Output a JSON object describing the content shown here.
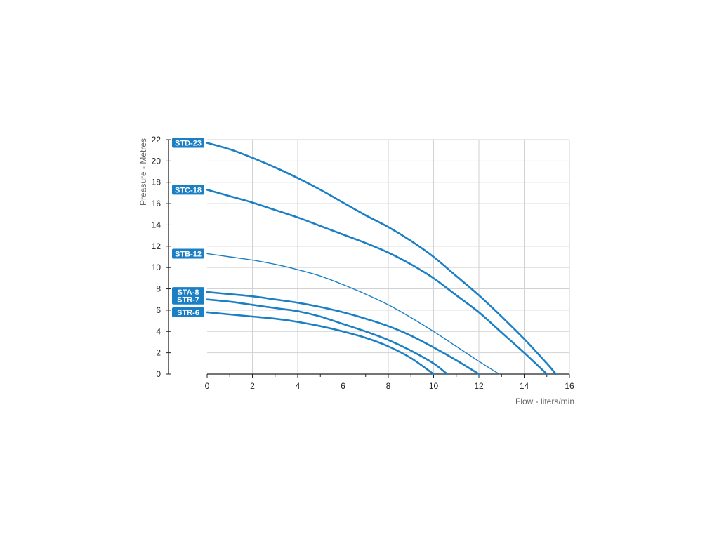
{
  "chart_data": {
    "type": "line",
    "title": "",
    "xlabel": "Flow - liters/min",
    "ylabel": "Preasure - Metres",
    "xlim": [
      0,
      16
    ],
    "ylim": [
      0,
      22
    ],
    "x_ticks": [
      0,
      2,
      4,
      6,
      8,
      10,
      12,
      14,
      16
    ],
    "y_ticks": [
      0,
      2,
      4,
      6,
      8,
      10,
      12,
      14,
      16,
      18,
      20,
      22
    ],
    "grid": true,
    "series_color": "#1a7fc4",
    "series": [
      {
        "name": "STD-23",
        "line": "thick",
        "x": [
          0,
          1,
          2,
          3,
          4,
          5,
          6,
          7,
          8,
          9,
          10,
          11,
          12,
          13,
          14,
          15,
          15.4
        ],
        "y": [
          21.7,
          21.1,
          20.3,
          19.4,
          18.4,
          17.3,
          16.1,
          14.9,
          13.8,
          12.5,
          11.0,
          9.2,
          7.4,
          5.4,
          3.3,
          1.0,
          0
        ]
      },
      {
        "name": "STC-18",
        "line": "thick",
        "x": [
          0,
          1,
          2,
          3,
          4,
          5,
          6,
          7,
          8,
          9,
          10,
          11,
          12,
          13,
          14,
          15
        ],
        "y": [
          17.3,
          16.7,
          16.1,
          15.4,
          14.7,
          13.9,
          13.1,
          12.3,
          11.4,
          10.3,
          9.0,
          7.4,
          5.8,
          3.9,
          2.0,
          0
        ]
      },
      {
        "name": "STB-12",
        "line": "thin",
        "x": [
          0,
          1,
          2,
          3,
          4,
          5,
          6,
          7,
          8,
          9,
          10,
          11,
          12,
          12.9
        ],
        "y": [
          11.3,
          11.0,
          10.7,
          10.3,
          9.8,
          9.2,
          8.4,
          7.5,
          6.5,
          5.3,
          4.0,
          2.6,
          1.2,
          0
        ]
      },
      {
        "name": "STA-8",
        "line": "thick",
        "x": [
          0,
          1,
          2,
          3,
          4,
          5,
          6,
          7,
          8,
          9,
          10,
          11,
          12
        ],
        "y": [
          7.7,
          7.5,
          7.3,
          7.0,
          6.7,
          6.3,
          5.8,
          5.2,
          4.5,
          3.6,
          2.5,
          1.3,
          0
        ]
      },
      {
        "name": "STR-7",
        "line": "thick",
        "x": [
          0,
          1,
          2,
          3,
          4,
          5,
          6,
          7,
          8,
          9,
          10,
          10.6
        ],
        "y": [
          7.0,
          6.8,
          6.5,
          6.2,
          5.9,
          5.4,
          4.7,
          4.0,
          3.2,
          2.2,
          1.0,
          0
        ]
      },
      {
        "name": "STR-6",
        "line": "thick",
        "x": [
          0,
          1,
          2,
          3,
          4,
          5,
          6,
          7,
          8,
          9,
          10
        ],
        "y": [
          5.8,
          5.6,
          5.4,
          5.2,
          4.9,
          4.5,
          4.0,
          3.4,
          2.6,
          1.5,
          0
        ]
      }
    ]
  }
}
